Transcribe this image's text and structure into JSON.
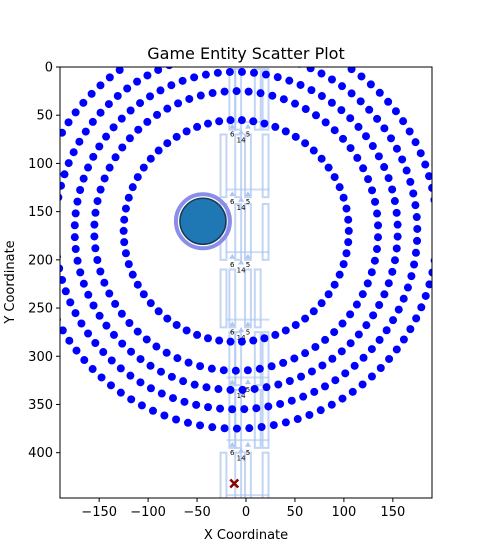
{
  "chart_data": {
    "type": "scatter",
    "title": "Game Entity Scatter Plot",
    "xlabel": "X Coordinate",
    "ylabel": "Y Coordinate",
    "xlim": [
      -190,
      190
    ],
    "ylim": [
      447,
      0
    ],
    "y_inverted": true,
    "grid": false,
    "xticks": [
      -150,
      -100,
      -50,
      0,
      50,
      100,
      150
    ],
    "yticks": [
      0,
      50,
      100,
      150,
      200,
      250,
      300,
      350,
      400
    ],
    "colors": {
      "ring_points": "#0000ff",
      "player_fill": "#1f77b4",
      "player_halo": "#8a8ee8",
      "lane_boxes": "#aec7f0",
      "marker": "#8b0000"
    },
    "rings": {
      "center": [
        -10,
        170
      ],
      "radii": [
        115,
        145,
        165,
        185,
        205
      ],
      "points_per_ring": [
        62,
        74,
        84,
        94,
        102
      ],
      "series_name": ""
    },
    "player_entity": {
      "x": -44,
      "y": 160
    },
    "target_marker": {
      "x": -12,
      "y": 432,
      "shape": "x"
    },
    "lane_labels": {
      "row_5": "5",
      "row_6": "6",
      "row_14": "14"
    }
  }
}
